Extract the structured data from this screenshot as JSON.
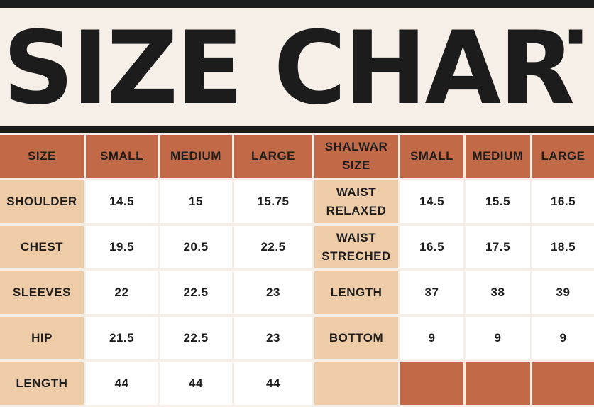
{
  "title": "SIZE CHART",
  "colors": {
    "header": "#c26a47",
    "label": "#efcca8",
    "value": "#ffffff",
    "ink": "#1c1c1c"
  },
  "shirt": {
    "headers": [
      "SIZE",
      "SMALL",
      "MEDIUM",
      "LARGE"
    ],
    "rows": [
      {
        "label": "SHOULDER",
        "small": "14.5",
        "medium": "15",
        "large": "15.75"
      },
      {
        "label": "CHEST",
        "small": "19.5",
        "medium": "20.5",
        "large": "22.5"
      },
      {
        "label": "SLEEVES",
        "small": "22",
        "medium": "22.5",
        "large": "23"
      },
      {
        "label": "HIP",
        "small": "21.5",
        "medium": "22.5",
        "large": "23"
      },
      {
        "label": "LENGTH",
        "small": "44",
        "medium": "44",
        "large": "44"
      }
    ]
  },
  "shalwar": {
    "headers": [
      "SHALWAR\nSIZE",
      "SMALL",
      "MEDIUM",
      "LARGE"
    ],
    "rows": [
      {
        "label": "WAIST\nRELAXED",
        "small": "14.5",
        "medium": "15.5",
        "large": "16.5"
      },
      {
        "label": "WAIST\nSTRECHED",
        "small": "16.5",
        "medium": "17.5",
        "large": "18.5"
      },
      {
        "label": "LENGTH",
        "small": "37",
        "medium": "38",
        "large": "39"
      },
      {
        "label": "BOTTOM",
        "small": "9",
        "medium": "9",
        "large": "9"
      }
    ]
  }
}
